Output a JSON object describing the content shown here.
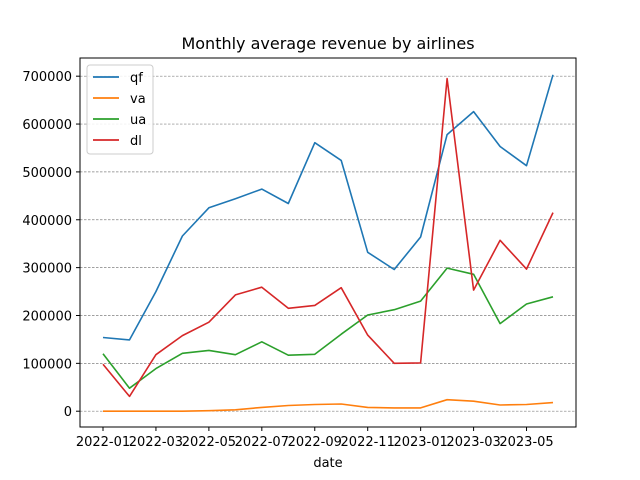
{
  "chart_data": {
    "type": "line",
    "title": "Monthly average revenue by airlines",
    "xlabel": "date",
    "ylabel": "",
    "x": [
      "2022-01",
      "2022-02",
      "2022-03",
      "2022-04",
      "2022-05",
      "2022-06",
      "2022-07",
      "2022-08",
      "2022-09",
      "2022-10",
      "2022-11",
      "2022-12",
      "2023-01",
      "2023-02",
      "2023-03",
      "2023-04",
      "2023-05",
      "2023-06"
    ],
    "x_ticks": [
      "2022-01",
      "2022-03",
      "2022-05",
      "2022-07",
      "2022-09",
      "2022-11",
      "2023-01",
      "2023-03",
      "2023-05"
    ],
    "y_ticks": [
      0,
      100000,
      200000,
      300000,
      400000,
      500000,
      600000,
      700000
    ],
    "ylim": [
      -33000,
      738000
    ],
    "grid": "horizontal, gray dashed",
    "legend_position": "top-left",
    "series": [
      {
        "name": "qf",
        "color": "#1f77b4",
        "values": [
          154000,
          149000,
          250000,
          366000,
          425000,
          444000,
          464000,
          434000,
          561000,
          524000,
          332000,
          296000,
          364000,
          578000,
          626000,
          553000,
          513000,
          703000
        ]
      },
      {
        "name": "va",
        "color": "#ff7f0e",
        "values": [
          0,
          0,
          0,
          0,
          1000,
          3000,
          8000,
          12000,
          14000,
          15000,
          8000,
          7000,
          7000,
          24000,
          21000,
          13000,
          14000,
          18000
        ]
      },
      {
        "name": "ua",
        "color": "#2ca02c",
        "values": [
          120000,
          48000,
          89000,
          121000,
          127000,
          118000,
          145000,
          117000,
          119000,
          161000,
          201000,
          212000,
          230000,
          299000,
          286000,
          183000,
          224000,
          239000
        ]
      },
      {
        "name": "dl",
        "color": "#d62728",
        "values": [
          98000,
          31000,
          118000,
          158000,
          186000,
          243000,
          259000,
          215000,
          221000,
          258000,
          159000,
          100000,
          101000,
          695000,
          253000,
          357000,
          297000,
          415000
        ]
      }
    ]
  }
}
